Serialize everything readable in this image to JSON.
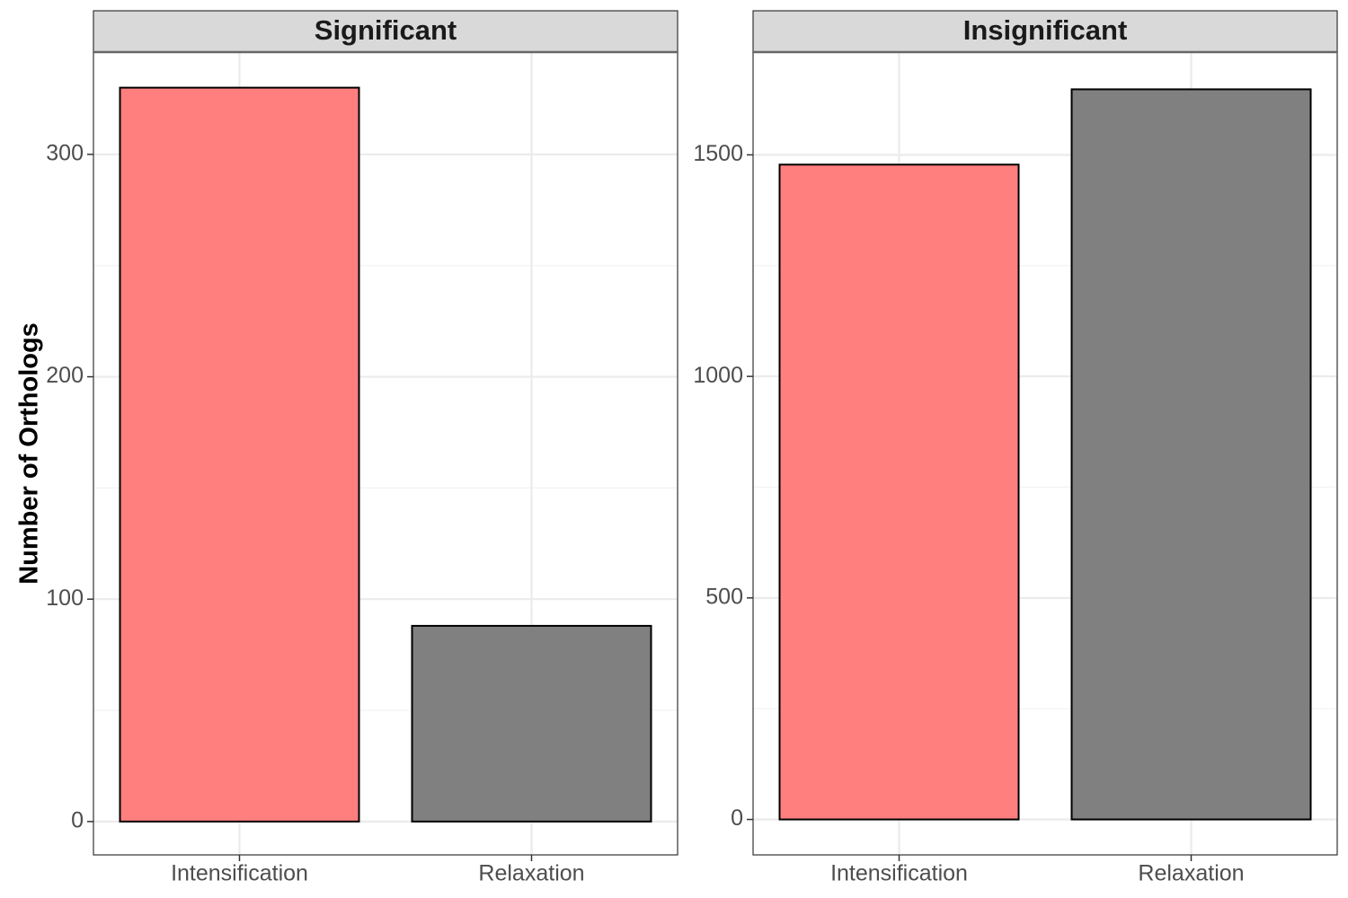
{
  "chart_data": {
    "type": "bar",
    "ylabel": "Number of Orthologs",
    "colors": {
      "Intensification": "#ff7f7f",
      "Relaxation": "#808080"
    },
    "panels": [
      {
        "title": "Significant",
        "categories": [
          "Intensification",
          "Relaxation"
        ],
        "values": [
          330,
          88
        ],
        "ylim": [
          -15,
          346
        ],
        "yticks": [
          0,
          100,
          200,
          300
        ]
      },
      {
        "title": "Insignificant",
        "categories": [
          "Intensification",
          "Relaxation"
        ],
        "values": [
          1478,
          1648
        ],
        "ylim": [
          -80,
          1732
        ],
        "yticks": [
          0,
          500,
          1000,
          1500
        ]
      }
    ]
  }
}
